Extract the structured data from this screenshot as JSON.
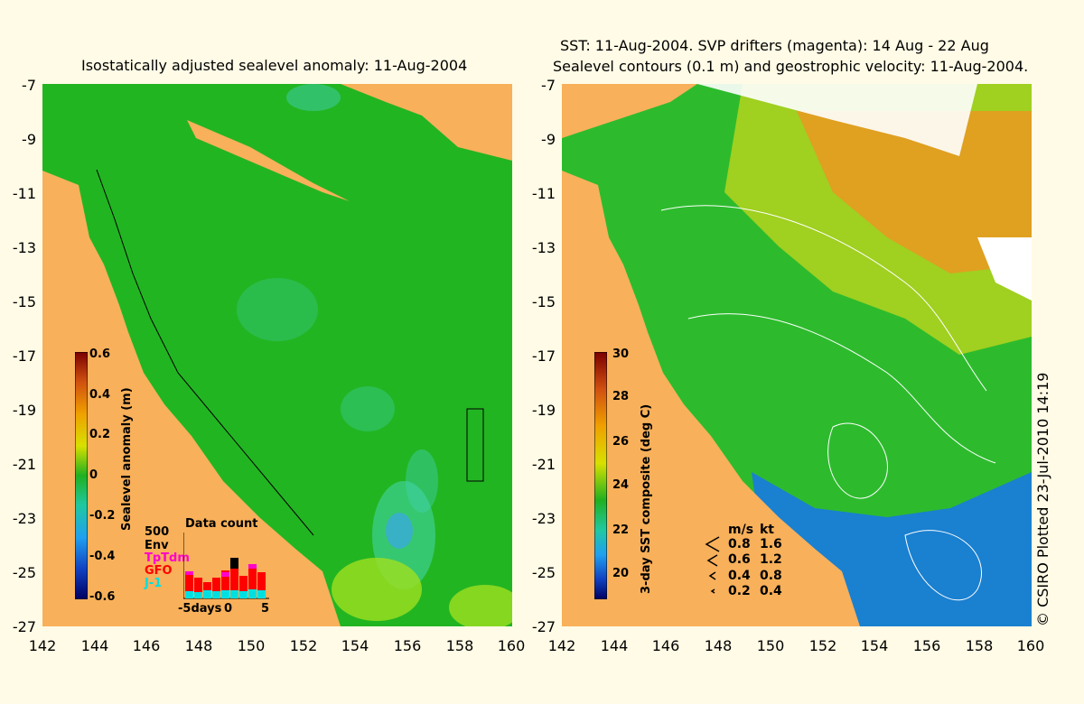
{
  "left": {
    "title": "Isostatically adjusted sealevel anomaly: 11-Aug-2004",
    "colorbar": {
      "title": "Sealevel anomaly (m)",
      "ticks": [
        "0.6",
        "0.4",
        "0.2",
        "0",
        "-0.2",
        "-0.4",
        "-0.6"
      ]
    },
    "data_count": {
      "title": "Data count",
      "scale_label": "500",
      "satellites": [
        {
          "name": "Env",
          "color": "#000000"
        },
        {
          "name": "TpTdm",
          "color": "#ff00cc"
        },
        {
          "name": "GFO",
          "color": "#ff0000"
        },
        {
          "name": "J-1",
          "color": "#00e0e0"
        }
      ],
      "axis_labels": [
        "-5days",
        "0",
        "5"
      ]
    }
  },
  "right": {
    "title_line1": "SST: 11-Aug-2004. SVP drifters (magenta): 14 Aug - 22 Aug",
    "title_line2": "Sealevel contours (0.1 m) and geostrophic velocity: 11-Aug-2004.",
    "colorbar": {
      "title": "3-day SST composite (deg C)",
      "ticks": [
        "30",
        "28",
        "26",
        "24",
        "22",
        "20"
      ]
    },
    "velocity_legend": {
      "header_ms": "m/s",
      "header_kt": "kt",
      "rows": [
        {
          "ms": "0.8",
          "kt": "1.6"
        },
        {
          "ms": "0.6",
          "kt": "1.2"
        },
        {
          "ms": "0.4",
          "kt": "0.8"
        },
        {
          "ms": "0.2",
          "kt": "0.4"
        }
      ]
    },
    "credit": "© CSIRO Plotted 23-Jul-2010 14:19"
  },
  "axes": {
    "lat_ticks": [
      "-7",
      "-9",
      "-11",
      "-13",
      "-15",
      "-17",
      "-19",
      "-21",
      "-23",
      "-25",
      "-27"
    ],
    "lon_ticks": [
      "142",
      "144",
      "146",
      "148",
      "150",
      "152",
      "154",
      "156",
      "158",
      "160"
    ]
  },
  "colors": {
    "land": "#f8b05a",
    "background": "#fffbe6",
    "sla_ocean": "#22b522"
  }
}
